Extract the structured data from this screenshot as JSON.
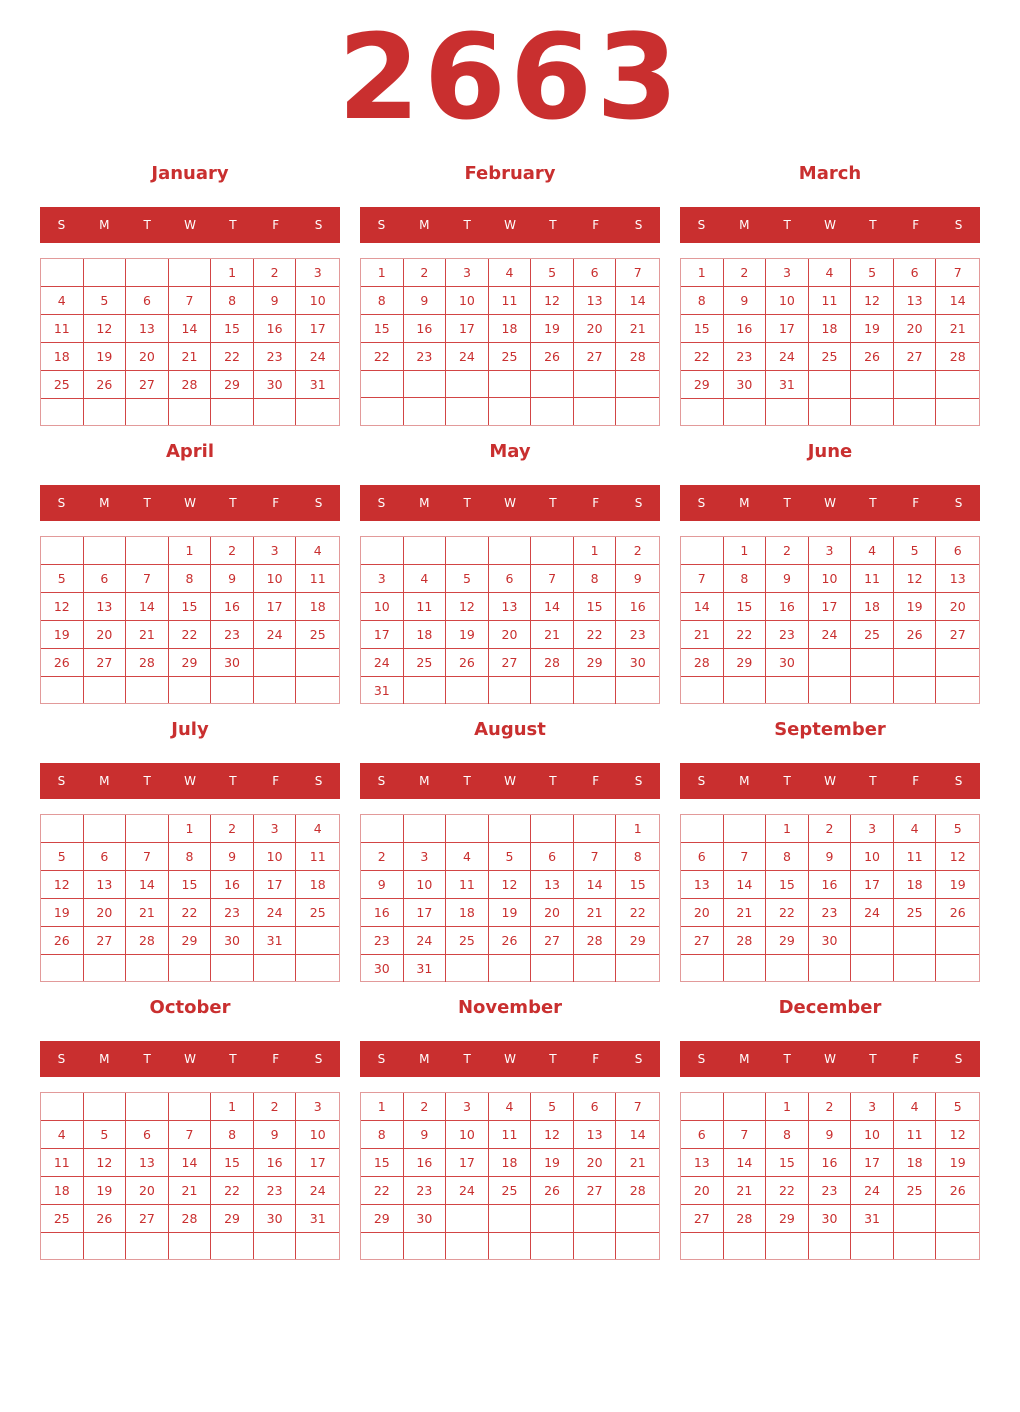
{
  "year": "2663",
  "accent": "#c92f2f",
  "weekdays": [
    "S",
    "M",
    "T",
    "W",
    "T",
    "F",
    "S"
  ],
  "months": [
    {
      "name": "January",
      "start": 4,
      "days": 31
    },
    {
      "name": "February",
      "start": 0,
      "days": 28
    },
    {
      "name": "March",
      "start": 0,
      "days": 31
    },
    {
      "name": "April",
      "start": 3,
      "days": 30
    },
    {
      "name": "May",
      "start": 5,
      "days": 31
    },
    {
      "name": "June",
      "start": 1,
      "days": 30
    },
    {
      "name": "July",
      "start": 3,
      "days": 31
    },
    {
      "name": "August",
      "start": 6,
      "days": 31
    },
    {
      "name": "September",
      "start": 2,
      "days": 30
    },
    {
      "name": "October",
      "start": 4,
      "days": 31
    },
    {
      "name": "November",
      "start": 0,
      "days": 30
    },
    {
      "name": "December",
      "start": 2,
      "days": 31
    }
  ]
}
